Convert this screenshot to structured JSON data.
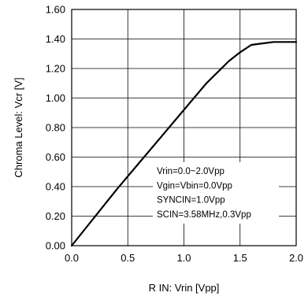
{
  "chart_data": {
    "type": "line",
    "title": "",
    "xlabel": "R IN: Vrin [Vpp]",
    "ylabel": "Chroma Level: Vcr [V]",
    "xlim": [
      0.0,
      2.0
    ],
    "ylim": [
      0.0,
      1.6
    ],
    "x_ticks": [
      0.0,
      0.5,
      1.0,
      1.5,
      2.0
    ],
    "x_tick_labels": [
      "0.0",
      "0.5",
      "1.0",
      "1.5",
      "2.0"
    ],
    "y_ticks": [
      0.0,
      0.2,
      0.4,
      0.6,
      0.8,
      1.0,
      1.2,
      1.4,
      1.6
    ],
    "y_tick_labels": [
      "0.00",
      "0.20",
      "0.40",
      "0.60",
      "0.80",
      "1.00",
      "1.20",
      "1.40",
      "1.60"
    ],
    "grid": true,
    "legend": "none",
    "series": [
      {
        "x": [
          0.0,
          0.2,
          0.4,
          0.6,
          0.8,
          1.0,
          1.2,
          1.4,
          1.5,
          1.6,
          1.7,
          1.8,
          2.0
        ],
        "y": [
          0.0,
          0.19,
          0.38,
          0.56,
          0.74,
          0.92,
          1.1,
          1.25,
          1.31,
          1.36,
          1.37,
          1.38,
          1.38
        ],
        "color": "#000000"
      }
    ],
    "annotations": [
      "Vrin=0.0~2.0Vpp",
      "Vgin=Vbin=0.0Vpp",
      "SYNCIN=1.0Vpp",
      "SCIN=3.58MHz,0.3Vpp"
    ]
  }
}
